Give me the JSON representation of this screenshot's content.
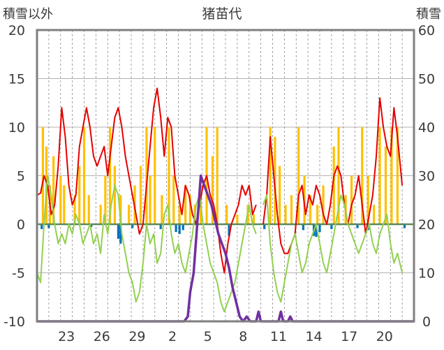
{
  "chart_data": {
    "type": "line",
    "title": "猪苗代",
    "ylabel_left": "積雪以外",
    "ylabel_right": "積雪",
    "ylim_left": [
      -10,
      20
    ],
    "ylim_right": [
      0,
      60
    ],
    "yticks_left": [
      "20",
      "15",
      "10",
      "5",
      "0",
      "-5",
      "-10"
    ],
    "yticks_right": [
      "60",
      "50",
      "40",
      "30",
      "20",
      "10",
      "0"
    ],
    "x_day_count": 32,
    "x_tick_labels": [
      {
        "day_index": 2,
        "label": "23"
      },
      {
        "day_index": 5,
        "label": "26"
      },
      {
        "day_index": 8,
        "label": "29"
      },
      {
        "day_index": 11,
        "label": "2"
      },
      {
        "day_index": 14,
        "label": "5"
      },
      {
        "day_index": 17,
        "label": "8"
      },
      {
        "day_index": 20,
        "label": "11"
      },
      {
        "day_index": 23,
        "label": "14"
      },
      {
        "day_index": 26,
        "label": "17"
      },
      {
        "day_index": 29,
        "label": "20"
      }
    ],
    "grid": true,
    "colors": {
      "max_temp": "#e60000",
      "min_temp": "#92d050",
      "precip": "#ffc000",
      "negative_bar": "#0070c0",
      "snow_depth": "#7030a0",
      "zero_line": "#5a8a5a",
      "frame": "#7f7f7f"
    },
    "series": [
      {
        "key": "max_temp",
        "axis": "left",
        "points": [
          [
            0,
            3
          ],
          [
            0.3,
            3.2
          ],
          [
            0.6,
            5
          ],
          [
            0.9,
            4
          ],
          [
            1.2,
            1
          ],
          [
            1.5,
            2
          ],
          [
            1.8,
            6
          ],
          [
            2.1,
            12
          ],
          [
            2.4,
            9
          ],
          [
            2.7,
            4
          ],
          [
            3.0,
            2
          ],
          [
            3.3,
            3
          ],
          [
            3.6,
            8
          ],
          [
            3.9,
            10
          ],
          [
            4.2,
            12
          ],
          [
            4.5,
            10
          ],
          [
            4.8,
            7
          ],
          [
            5.1,
            6
          ],
          [
            5.4,
            7
          ],
          [
            5.7,
            8
          ],
          [
            6.0,
            5
          ],
          [
            6.3,
            8
          ],
          [
            6.6,
            11
          ],
          [
            6.9,
            12
          ],
          [
            7.2,
            10
          ],
          [
            7.5,
            7
          ],
          [
            7.8,
            5
          ],
          [
            8.1,
            3
          ],
          [
            8.4,
            1
          ],
          [
            8.7,
            -1
          ],
          [
            9.0,
            0
          ],
          [
            9.3,
            4
          ],
          [
            9.6,
            8
          ],
          [
            9.9,
            12
          ],
          [
            10.2,
            14
          ],
          [
            10.5,
            11
          ],
          [
            10.8,
            7
          ],
          [
            11.1,
            11
          ],
          [
            11.4,
            10
          ],
          [
            11.7,
            5
          ],
          [
            12.0,
            3
          ],
          [
            12.3,
            1
          ],
          [
            12.6,
            4
          ],
          [
            12.9,
            3
          ],
          [
            13.2,
            1
          ],
          [
            13.5,
            0
          ],
          [
            13.8,
            2
          ],
          [
            14.1,
            4
          ],
          [
            14.4,
            5
          ],
          [
            14.7,
            3
          ],
          [
            15.0,
            2
          ],
          [
            15.3,
            0
          ],
          [
            15.6,
            -3
          ],
          [
            15.9,
            -5
          ],
          [
            16.2,
            -2
          ],
          [
            16.5,
            0
          ],
          [
            16.8,
            1
          ],
          [
            17.1,
            2
          ],
          [
            17.4,
            4
          ],
          [
            17.7,
            3
          ],
          [
            18.0,
            4
          ],
          [
            18.3,
            1
          ],
          [
            18.6,
            2
          ],
          [
            19.0,
            null
          ],
          [
            19.2,
            0
          ],
          [
            19.5,
            3
          ],
          [
            19.8,
            9
          ],
          [
            20.1,
            5
          ],
          [
            20.4,
            1
          ],
          [
            20.7,
            -2
          ],
          [
            21.0,
            -3
          ],
          [
            21.3,
            -3
          ],
          [
            21.6,
            -2
          ],
          [
            21.9,
            -1
          ],
          [
            22.2,
            3
          ],
          [
            22.5,
            4
          ],
          [
            22.8,
            1
          ],
          [
            23.1,
            3
          ],
          [
            23.4,
            2
          ],
          [
            23.7,
            4
          ],
          [
            24.0,
            3
          ],
          [
            24.3,
            1
          ],
          [
            24.6,
            0
          ],
          [
            24.9,
            2
          ],
          [
            25.2,
            5
          ],
          [
            25.5,
            6
          ],
          [
            25.8,
            5
          ],
          [
            26.1,
            2
          ],
          [
            26.4,
            0
          ],
          [
            26.7,
            2
          ],
          [
            27.0,
            3
          ],
          [
            27.3,
            5
          ],
          [
            27.6,
            2
          ],
          [
            27.9,
            -1
          ],
          [
            28.2,
            1
          ],
          [
            28.5,
            3
          ],
          [
            28.8,
            7
          ],
          [
            29.1,
            13
          ],
          [
            29.4,
            10
          ],
          [
            29.7,
            8
          ],
          [
            30.0,
            7
          ],
          [
            30.3,
            12
          ],
          [
            30.6,
            9
          ],
          [
            31.0,
            4
          ]
        ]
      },
      {
        "key": "min_temp",
        "axis": "left",
        "points": [
          [
            0,
            -5
          ],
          [
            0.3,
            -6
          ],
          [
            0.6,
            0
          ],
          [
            0.9,
            5
          ],
          [
            1.2,
            3
          ],
          [
            1.5,
            0
          ],
          [
            1.8,
            -2
          ],
          [
            2.1,
            -1
          ],
          [
            2.4,
            -2
          ],
          [
            2.7,
            0
          ],
          [
            3.0,
            -1
          ],
          [
            3.3,
            1
          ],
          [
            3.6,
            0
          ],
          [
            3.9,
            -2
          ],
          [
            4.2,
            -1
          ],
          [
            4.5,
            0
          ],
          [
            4.8,
            -2
          ],
          [
            5.1,
            -1
          ],
          [
            5.4,
            -3
          ],
          [
            5.7,
            1
          ],
          [
            6.0,
            -1
          ],
          [
            6.3,
            2
          ],
          [
            6.6,
            4
          ],
          [
            6.9,
            3
          ],
          [
            7.2,
            -1
          ],
          [
            7.5,
            -3
          ],
          [
            7.8,
            -5
          ],
          [
            8.1,
            -6
          ],
          [
            8.4,
            -8
          ],
          [
            8.7,
            -7
          ],
          [
            9.0,
            -4
          ],
          [
            9.3,
            0
          ],
          [
            9.6,
            -2
          ],
          [
            9.9,
            -1
          ],
          [
            10.2,
            -4
          ],
          [
            10.5,
            -3
          ],
          [
            10.8,
            1
          ],
          [
            11.1,
            2
          ],
          [
            11.4,
            -1
          ],
          [
            11.7,
            -3
          ],
          [
            12.0,
            -2
          ],
          [
            12.3,
            -4
          ],
          [
            12.6,
            -5
          ],
          [
            12.9,
            -3
          ],
          [
            13.2,
            -1
          ],
          [
            13.5,
            2
          ],
          [
            13.8,
            3
          ],
          [
            14.1,
            0
          ],
          [
            14.4,
            -2
          ],
          [
            14.7,
            -4
          ],
          [
            15.0,
            -5
          ],
          [
            15.3,
            -6
          ],
          [
            15.6,
            -8
          ],
          [
            15.9,
            -9
          ],
          [
            16.2,
            -8
          ],
          [
            16.5,
            -7
          ],
          [
            16.8,
            -6
          ],
          [
            17.1,
            -4
          ],
          [
            17.4,
            -2
          ],
          [
            17.7,
            0
          ],
          [
            18.0,
            2
          ],
          [
            18.3,
            0
          ],
          [
            18.6,
            -1
          ],
          [
            19.0,
            null
          ],
          [
            19.2,
            2
          ],
          [
            19.5,
            3
          ],
          [
            19.8,
            -2
          ],
          [
            20.1,
            -5
          ],
          [
            20.4,
            -7
          ],
          [
            20.7,
            -8
          ],
          [
            21.0,
            -6
          ],
          [
            21.3,
            -4
          ],
          [
            21.6,
            -2
          ],
          [
            21.9,
            -1
          ],
          [
            22.2,
            -3
          ],
          [
            22.5,
            -5
          ],
          [
            22.8,
            -4
          ],
          [
            23.1,
            -2
          ],
          [
            23.4,
            -1
          ],
          [
            23.7,
            0
          ],
          [
            24.0,
            -2
          ],
          [
            24.3,
            -4
          ],
          [
            24.6,
            -5
          ],
          [
            24.9,
            -3
          ],
          [
            25.2,
            -1
          ],
          [
            25.5,
            1
          ],
          [
            25.8,
            3
          ],
          [
            26.1,
            2
          ],
          [
            26.4,
            0
          ],
          [
            26.7,
            -1
          ],
          [
            27.0,
            -2
          ],
          [
            27.3,
            -3
          ],
          [
            27.6,
            -2
          ],
          [
            27.9,
            -1
          ],
          [
            28.2,
            0
          ],
          [
            28.5,
            -2
          ],
          [
            28.8,
            -3
          ],
          [
            29.1,
            -1
          ],
          [
            29.4,
            0
          ],
          [
            29.7,
            1
          ],
          [
            30.0,
            -2
          ],
          [
            30.3,
            -4
          ],
          [
            30.6,
            -3
          ],
          [
            31.0,
            -5
          ]
        ]
      },
      {
        "key": "snow_depth",
        "axis": "right",
        "points": [
          [
            0,
            0
          ],
          [
            12.5,
            0
          ],
          [
            12.8,
            1
          ],
          [
            13.0,
            6
          ],
          [
            13.3,
            10
          ],
          [
            13.6,
            20
          ],
          [
            13.9,
            30
          ],
          [
            14.2,
            28
          ],
          [
            14.5,
            26
          ],
          [
            14.8,
            24
          ],
          [
            15.1,
            21
          ],
          [
            15.4,
            18
          ],
          [
            15.7,
            16
          ],
          [
            16.0,
            14
          ],
          [
            16.3,
            11
          ],
          [
            16.6,
            7
          ],
          [
            16.9,
            4
          ],
          [
            17.2,
            1
          ],
          [
            17.5,
            0
          ],
          [
            17.8,
            1
          ],
          [
            18.1,
            0
          ],
          [
            18.6,
            0
          ],
          [
            18.8,
            2
          ],
          [
            19.0,
            0
          ],
          [
            20.5,
            0
          ],
          [
            20.7,
            2
          ],
          [
            20.9,
            0
          ],
          [
            21.3,
            0
          ],
          [
            21.5,
            1
          ],
          [
            21.7,
            0
          ],
          [
            32,
            0
          ]
        ]
      }
    ],
    "bars": {
      "key": "precip",
      "axis": "left",
      "positive": [
        [
          0.5,
          10
        ],
        [
          0.8,
          8
        ],
        [
          1.1,
          4
        ],
        [
          1.4,
          7
        ],
        [
          2.0,
          5
        ],
        [
          2.3,
          4
        ],
        [
          3.2,
          3
        ],
        [
          3.6,
          6
        ],
        [
          4.0,
          10
        ],
        [
          4.4,
          3
        ],
        [
          5.4,
          2
        ],
        [
          5.8,
          5
        ],
        [
          6.2,
          10
        ],
        [
          6.6,
          6
        ],
        [
          7.1,
          3
        ],
        [
          7.8,
          2
        ],
        [
          8.3,
          4
        ],
        [
          8.8,
          6
        ],
        [
          9.3,
          10
        ],
        [
          9.6,
          5
        ],
        [
          10.0,
          10
        ],
        [
          10.6,
          3
        ],
        [
          11.2,
          10
        ],
        [
          11.6,
          5
        ],
        [
          12.1,
          2
        ],
        [
          12.6,
          4
        ],
        [
          13.0,
          3
        ],
        [
          13.4,
          2
        ],
        [
          13.9,
          4
        ],
        [
          14.4,
          10
        ],
        [
          14.9,
          7
        ],
        [
          15.3,
          10
        ],
        [
          16.1,
          2
        ],
        [
          17.0,
          1
        ],
        [
          17.9,
          2
        ],
        [
          18.4,
          1
        ],
        [
          19.8,
          10
        ],
        [
          20.2,
          9
        ],
        [
          20.6,
          6
        ],
        [
          21.1,
          2
        ],
        [
          21.6,
          3
        ],
        [
          22.2,
          10
        ],
        [
          22.7,
          5
        ],
        [
          23.2,
          3
        ],
        [
          23.8,
          2
        ],
        [
          24.3,
          4
        ],
        [
          25.2,
          8
        ],
        [
          25.6,
          10
        ],
        [
          26.2,
          3
        ],
        [
          26.7,
          5
        ],
        [
          27.6,
          10
        ],
        [
          28.1,
          5
        ],
        [
          28.6,
          2
        ],
        [
          29.1,
          10
        ],
        [
          29.6,
          8
        ],
        [
          30.1,
          10
        ],
        [
          30.6,
          10
        ]
      ],
      "negative": [
        [
          0.4,
          -0.5
        ],
        [
          1.0,
          -0.4
        ],
        [
          4.6,
          -0.3
        ],
        [
          6.9,
          -1.5
        ],
        [
          7.1,
          -2
        ],
        [
          8.1,
          -0.4
        ],
        [
          10.5,
          -0.5
        ],
        [
          11.8,
          -0.8
        ],
        [
          12.1,
          -1
        ],
        [
          12.4,
          -0.6
        ],
        [
          16.3,
          -1.2
        ],
        [
          19.3,
          -0.5
        ],
        [
          22.6,
          -0.6
        ],
        [
          23.5,
          -1.2
        ],
        [
          23.7,
          -1.3
        ],
        [
          24.0,
          -0.8
        ],
        [
          25.0,
          -0.5
        ],
        [
          27.2,
          -0.4
        ],
        [
          28.1,
          -0.6
        ],
        [
          31.2,
          -0.4
        ]
      ]
    }
  }
}
